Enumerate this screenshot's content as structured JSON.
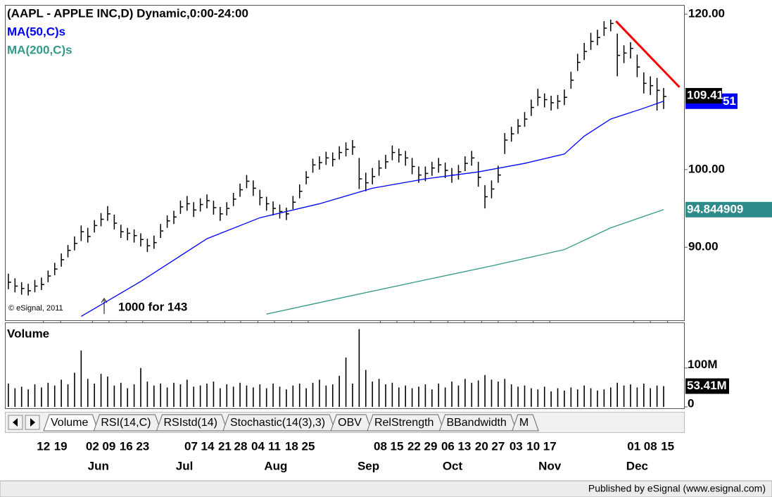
{
  "chart_data": {
    "type": "ohlc",
    "title": "(AAPL - APPLE INC,D) Dynamic,0:00-24:00",
    "color": "#000000",
    "xlim": [
      -0.2,
      102.4
    ],
    "ylim": [
      80.6,
      121.1
    ],
    "yticks": [
      {
        "value": 120,
        "label": "120.00"
      },
      {
        "value": 100,
        "label": "100.00"
      },
      {
        "value": 90,
        "label": "90.00"
      }
    ],
    "high": [
      86.6,
      86.0,
      85.5,
      85.3,
      85.8,
      86.1,
      87.0,
      88.0,
      89.2,
      90.3,
      91.4,
      92.8,
      92.5,
      93.5,
      94.4,
      95.3,
      94.2,
      92.9,
      92.5,
      92.3,
      91.8,
      91.1,
      91.5,
      93.0,
      94.1,
      94.7,
      96.0,
      96.6,
      95.8,
      96.3,
      96.8,
      96.0,
      95.2,
      95.8,
      97.0,
      98.2,
      99.3,
      98.6,
      97.4,
      96.5,
      95.9,
      95.5,
      95.1,
      96.6,
      98.1,
      99.8,
      101.4,
      101.7,
      102.3,
      102.2,
      103.0,
      103.5,
      103.8,
      101.5,
      99.6,
      100.2,
      101.2,
      101.9,
      103.1,
      102.7,
      102.4,
      101.5,
      100.4,
      100.4,
      101.0,
      101.5,
      100.9,
      100.2,
      100.6,
      101.7,
      102.4,
      101.0,
      98.0,
      98.6,
      100.5,
      104.7,
      105.5,
      106.5,
      107.4,
      109.0,
      110.4,
      109.8,
      109.5,
      109.6,
      110.3,
      112.6,
      114.9,
      116.3,
      117.6,
      118.0,
      119.1,
      119.3,
      117.5,
      116.0,
      116.4,
      114.8,
      112.5,
      112.0,
      111.8,
      110.5
    ],
    "low": [
      84.6,
      84.2,
      83.9,
      83.8,
      84.2,
      84.5,
      85.5,
      86.4,
      87.5,
      88.7,
      89.6,
      90.8,
      90.6,
      91.9,
      92.7,
      93.4,
      92.3,
      91.2,
      90.9,
      90.6,
      90.1,
      89.4,
      89.8,
      91.2,
      92.5,
      93.0,
      94.3,
      94.7,
      93.9,
      94.6,
      95.0,
      94.2,
      93.4,
      94.1,
      95.3,
      96.5,
      97.6,
      96.6,
      95.4,
      94.7,
      94.1,
      93.7,
      93.5,
      94.9,
      96.3,
      98.1,
      99.6,
      100.0,
      100.6,
      100.4,
      101.3,
      101.7,
      101.9,
      97.5,
      97.2,
      98.1,
      99.2,
      100.1,
      101.2,
      100.9,
      100.5,
      99.4,
      98.3,
      98.5,
      99.2,
      99.6,
      98.9,
      98.3,
      98.7,
      99.8,
      100.5,
      97.8,
      95.0,
      96.3,
      98.3,
      102.0,
      103.6,
      104.6,
      105.5,
      106.9,
      108.2,
      108.0,
      107.6,
      107.8,
      108.3,
      110.4,
      112.7,
      114.1,
      115.4,
      116.0,
      117.2,
      117.8,
      112.0,
      113.7,
      114.3,
      111.9,
      109.8,
      109.6,
      107.6,
      107.8
    ],
    "close": [
      85.5,
      85.0,
      84.7,
      84.4,
      85.0,
      85.2,
      86.3,
      87.2,
      88.4,
      89.6,
      90.5,
      92.0,
      91.4,
      92.8,
      93.6,
      94.3,
      93.1,
      92.0,
      91.8,
      91.5,
      91.0,
      90.2,
      90.6,
      92.1,
      93.4,
      93.9,
      95.2,
      95.6,
      94.8,
      95.5,
      96.0,
      95.1,
      94.3,
      95.0,
      96.2,
      97.4,
      98.5,
      97.6,
      96.4,
      95.6,
      95.0,
      94.6,
      94.3,
      95.8,
      97.2,
      99.0,
      100.6,
      100.9,
      101.5,
      101.3,
      102.2,
      102.6,
      102.9,
      98.8,
      98.3,
      99.1,
      100.2,
      101.0,
      102.2,
      101.9,
      101.5,
      100.4,
      99.3,
      99.5,
      100.2,
      100.6,
      99.9,
      99.3,
      99.7,
      100.8,
      101.5,
      99.0,
      96.5,
      97.5,
      99.3,
      103.8,
      104.6,
      105.6,
      106.5,
      108.0,
      109.3,
      109.0,
      108.6,
      108.8,
      109.3,
      111.5,
      113.8,
      115.2,
      116.5,
      117.0,
      118.2,
      118.8,
      114.7,
      115.0,
      115.6,
      113.2,
      111.1,
      110.8,
      110.2,
      109.41
    ],
    "last_label": "109.41",
    "series": [
      {
        "name": "MA(50,C)s",
        "color": "#0000ff",
        "x": [
          11,
          20,
          30,
          38,
          47,
          55,
          63,
          71,
          78,
          84,
          87,
          91,
          96,
          99
        ],
        "values": [
          81.1,
          85.6,
          91.1,
          93.8,
          95.6,
          97.6,
          98.8,
          99.7,
          100.8,
          102.0,
          104.3,
          106.5,
          107.9,
          108.8
        ],
        "tail_label": "51"
      },
      {
        "name": "MA(200,C)s",
        "color": "#339988",
        "x": [
          39,
          52,
          63,
          73,
          84,
          91,
          99
        ],
        "values": [
          81.4,
          83.8,
          85.8,
          87.6,
          89.7,
          92.5,
          94.844909
        ],
        "value_label": "94.844909"
      }
    ],
    "trendline": {
      "x": [
        91.8,
        101.4
      ],
      "values": [
        119.1,
        110.6
      ],
      "color": "#ff0000"
    },
    "copyright": "© eSignal, 2011",
    "annotation": "1000 for 143",
    "volume": {
      "title": "Volume",
      "color": "#000000",
      "ylim": [
        0,
        210
      ],
      "yticks": [
        {
          "value": 100,
          "label": "100M"
        },
        0
      ],
      "values": [
        60,
        48,
        52,
        45,
        58,
        50,
        62,
        55,
        70,
        58,
        88,
        145,
        72,
        60,
        85,
        78,
        55,
        62,
        48,
        58,
        100,
        65,
        55,
        60,
        50,
        62,
        58,
        70,
        52,
        55,
        60,
        65,
        48,
        58,
        52,
        62,
        55,
        50,
        58,
        48,
        60,
        52,
        45,
        55,
        60,
        48,
        62,
        70,
        55,
        58,
        80,
        127,
        60,
        200,
        95,
        65,
        72,
        58,
        62,
        50,
        55,
        48,
        52,
        58,
        45,
        60,
        50,
        65,
        55,
        72,
        62,
        68,
        82,
        70,
        65,
        72,
        58,
        52,
        55,
        48,
        45,
        52,
        40,
        48,
        42,
        50,
        45,
        55,
        48,
        42,
        45,
        50,
        62,
        55,
        58,
        50,
        60,
        48,
        55,
        53.41
      ],
      "last_label": "53.41M"
    },
    "xticks": [
      {
        "value": 5.3,
        "label": "12"
      },
      {
        "value": 7.9,
        "label": "19"
      },
      {
        "value": 12.7,
        "label": "02"
      },
      {
        "value": 15.2,
        "label": "09"
      },
      {
        "value": 17.8,
        "label": "16"
      },
      {
        "value": 20.3,
        "label": "23"
      },
      {
        "value": 27.6,
        "label": "07"
      },
      {
        "value": 30.1,
        "label": "14"
      },
      {
        "value": 32.7,
        "label": "21"
      },
      {
        "value": 35.1,
        "label": "28"
      },
      {
        "value": 37.7,
        "label": "04"
      },
      {
        "value": 40.2,
        "label": "11"
      },
      {
        "value": 42.8,
        "label": "18"
      },
      {
        "value": 45.3,
        "label": "25"
      },
      {
        "value": 56.2,
        "label": "08"
      },
      {
        "value": 58.7,
        "label": "15"
      },
      {
        "value": 61.3,
        "label": "22"
      },
      {
        "value": 63.8,
        "label": "29"
      },
      {
        "value": 66.4,
        "label": "06"
      },
      {
        "value": 68.9,
        "label": "13"
      },
      {
        "value": 71.5,
        "label": "20"
      },
      {
        "value": 74.0,
        "label": "27"
      },
      {
        "value": 76.7,
        "label": "03"
      },
      {
        "value": 79.3,
        "label": "10"
      },
      {
        "value": 81.8,
        "label": "17"
      },
      {
        "value": 94.5,
        "label": "01"
      },
      {
        "value": 97.0,
        "label": "08"
      },
      {
        "value": 99.6,
        "label": "15"
      }
    ],
    "month_ticks": [
      {
        "value": 13.6,
        "label": "Jun"
      },
      {
        "value": 26.6,
        "label": "Jul"
      },
      {
        "value": 40.4,
        "label": "Aug"
      },
      {
        "value": 54.4,
        "label": "Sep"
      },
      {
        "value": 67.1,
        "label": "Oct"
      },
      {
        "value": 81.8,
        "label": "Nov"
      },
      {
        "value": 95.0,
        "label": "Dec"
      }
    ],
    "tabs": [
      "Volume",
      "RSI(14,C)",
      "RSIstd(14)",
      "Stochastic(14(3),3)",
      "OBV",
      "RelStrength",
      "BBandwidth",
      "M"
    ],
    "footer": "Published by eSignal (www.esignal.com)"
  }
}
